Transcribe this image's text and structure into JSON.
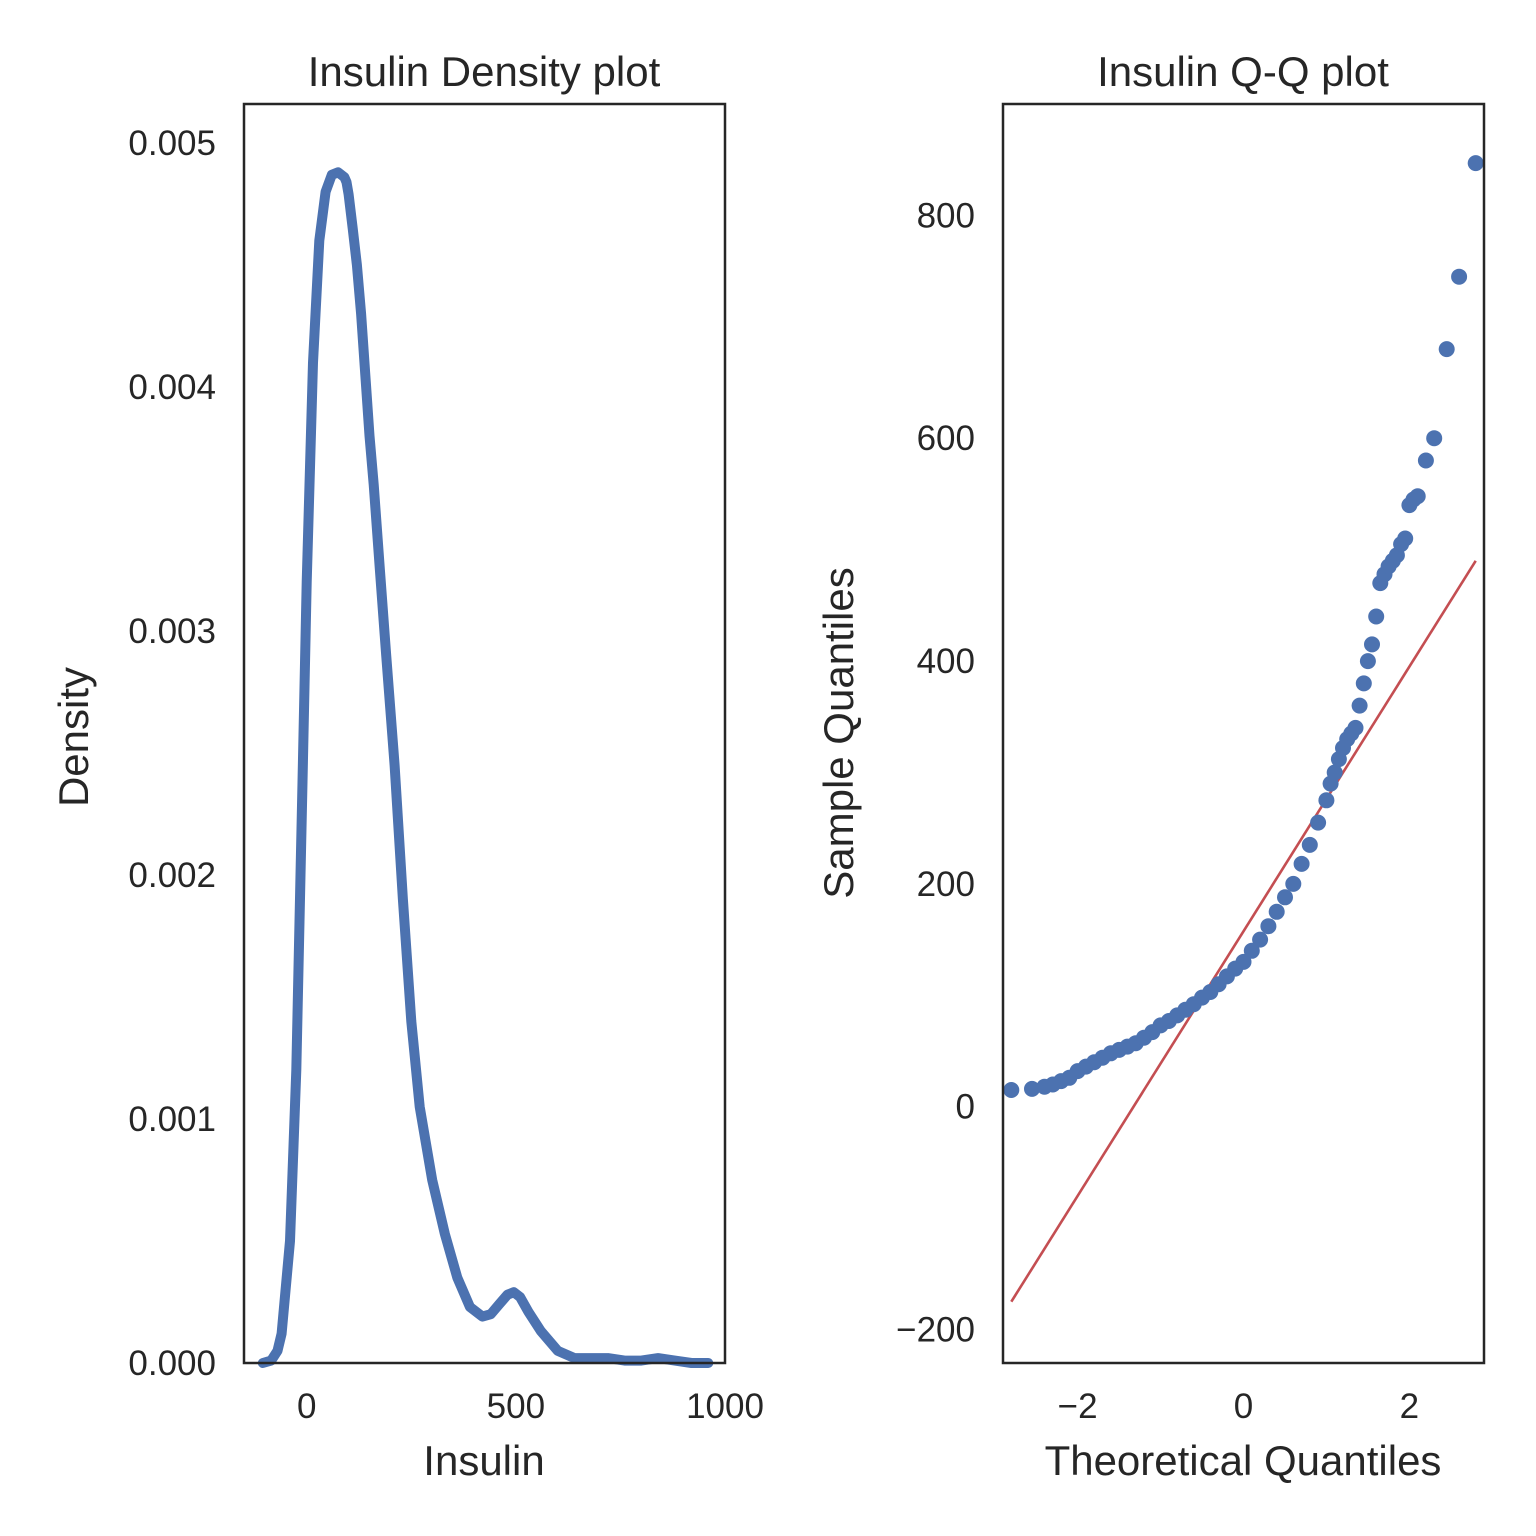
{
  "chart_data": [
    {
      "type": "line",
      "title": "Insulin Density plot",
      "xlabel": "Insulin",
      "ylabel": "Density",
      "xlim": [
        -150,
        1000
      ],
      "ylim": [
        0,
        0.00516
      ],
      "xticks": [
        0,
        500,
        1000
      ],
      "xtick_labels": [
        "0",
        "500",
        "1000"
      ],
      "yticks": [
        0,
        0.001,
        0.002,
        0.003,
        0.004,
        0.005
      ],
      "ytick_labels": [
        "0.000",
        "0.001",
        "0.002",
        "0.003",
        "0.004",
        "0.005"
      ],
      "grid": false,
      "color": "#4c72b0",
      "series": [
        {
          "x": [
            -105,
            -85,
            -70,
            -60,
            -40,
            -25,
            -10,
            0,
            15,
            30,
            45,
            60,
            75,
            90,
            95,
            100,
            110,
            120,
            130,
            140,
            150,
            160,
            175,
            190,
            210,
            230,
            250,
            270,
            300,
            330,
            360,
            390,
            420,
            440,
            460,
            480,
            495,
            510,
            530,
            560,
            600,
            640,
            680,
            720,
            760,
            800,
            840,
            880,
            920,
            960
          ],
          "y": [
            0.0,
            1e-05,
            5e-05,
            0.00012,
            0.0005,
            0.0012,
            0.0024,
            0.0032,
            0.0041,
            0.0046,
            0.0048,
            0.00487,
            0.00488,
            0.00486,
            0.00484,
            0.00479,
            0.00465,
            0.0045,
            0.0043,
            0.00405,
            0.0038,
            0.0036,
            0.00325,
            0.0029,
            0.00245,
            0.0019,
            0.0014,
            0.00105,
            0.00075,
            0.00053,
            0.00035,
            0.00023,
            0.00019,
            0.0002,
            0.00024,
            0.00028,
            0.00029,
            0.00027,
            0.00021,
            0.00013,
            5e-05,
            2e-05,
            2e-05,
            2e-05,
            1e-05,
            1e-05,
            2e-05,
            1e-05,
            0.0,
            0.0
          ]
        }
      ]
    },
    {
      "type": "scatter",
      "title": "Insulin Q-Q plot",
      "xlabel": "Theoretical Quantiles",
      "ylabel": "Sample Quantiles",
      "xlim": [
        -2.9,
        2.9
      ],
      "ylim": [
        -230,
        900
      ],
      "xticks": [
        -2,
        0,
        2
      ],
      "xtick_labels": [
        "−2",
        "0",
        "2"
      ],
      "yticks": [
        -200,
        0,
        200,
        400,
        600,
        800
      ],
      "ytick_labels": [
        "−200",
        "0",
        "200",
        "400",
        "600",
        "800"
      ],
      "grid": false,
      "point_color": "#4c72b0",
      "line_color": "#c44e52",
      "reference_line": {
        "x": [
          -2.8,
          2.8
        ],
        "y": [
          -175,
          490
        ]
      },
      "points": {
        "x": [
          -2.8,
          -2.55,
          -2.4,
          -2.3,
          -2.2,
          -2.1,
          -2.0,
          -1.9,
          -1.8,
          -1.7,
          -1.6,
          -1.5,
          -1.4,
          -1.3,
          -1.2,
          -1.1,
          -1.0,
          -0.9,
          -0.8,
          -0.7,
          -0.6,
          -0.5,
          -0.4,
          -0.3,
          -0.2,
          -0.1,
          0.0,
          0.1,
          0.2,
          0.3,
          0.4,
          0.5,
          0.6,
          0.7,
          0.8,
          0.9,
          1.0,
          1.05,
          1.1,
          1.15,
          1.2,
          1.25,
          1.3,
          1.35,
          1.4,
          1.45,
          1.5,
          1.55,
          1.6,
          1.65,
          1.7,
          1.75,
          1.8,
          1.85,
          1.9,
          1.95,
          2.0,
          2.05,
          2.1,
          2.2,
          2.3,
          2.45,
          2.6,
          2.8
        ],
        "y": [
          15,
          16,
          18,
          20,
          23,
          26,
          32,
          36,
          40,
          44,
          48,
          51,
          54,
          57,
          62,
          67,
          73,
          77,
          82,
          87,
          92,
          98,
          103,
          110,
          117,
          124,
          130,
          140,
          150,
          162,
          175,
          188,
          200,
          218,
          235,
          255,
          275,
          290,
          300,
          312,
          322,
          330,
          335,
          340,
          360,
          380,
          400,
          415,
          440,
          470,
          478,
          485,
          490,
          495,
          505,
          510,
          540,
          545,
          548,
          580,
          600,
          680,
          745,
          847
        ]
      }
    }
  ]
}
